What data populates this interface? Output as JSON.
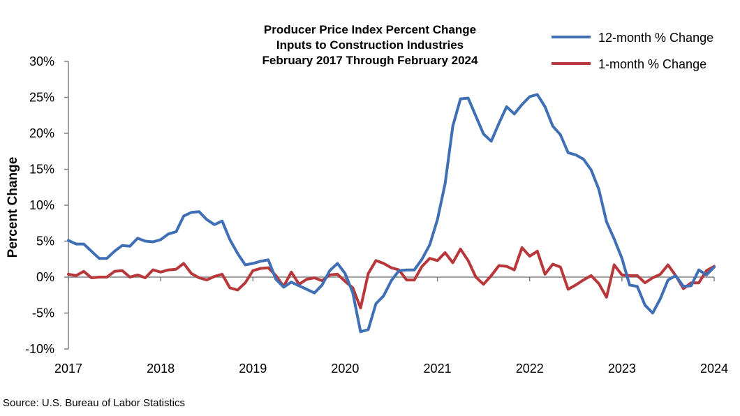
{
  "chart_data": {
    "type": "line",
    "title": [
      "Producer Price Index Percent Change",
      "Inputs to Construction Industries",
      "February 2017 Through February 2024"
    ],
    "xlabel": "",
    "ylabel": "Percent Change",
    "ylim": [
      -10,
      30
    ],
    "yticks": [
      "-10%",
      "-5%",
      "0%",
      "5%",
      "10%",
      "15%",
      "20%",
      "25%",
      "30%"
    ],
    "yticks_values": [
      -10,
      -5,
      0,
      5,
      10,
      15,
      20,
      25,
      30
    ],
    "xticks": [
      "2017",
      "2018",
      "2019",
      "2020",
      "2021",
      "2022",
      "2023",
      "2024"
    ],
    "grid": false,
    "legend_position": "top-right",
    "x": [
      "2017-02",
      "2017-03",
      "2017-04",
      "2017-05",
      "2017-06",
      "2017-07",
      "2017-08",
      "2017-09",
      "2017-10",
      "2017-11",
      "2017-12",
      "2018-01",
      "2018-02",
      "2018-03",
      "2018-04",
      "2018-05",
      "2018-06",
      "2018-07",
      "2018-08",
      "2018-09",
      "2018-10",
      "2018-11",
      "2018-12",
      "2019-01",
      "2019-02",
      "2019-03",
      "2019-04",
      "2019-05",
      "2019-06",
      "2019-07",
      "2019-08",
      "2019-09",
      "2019-10",
      "2019-11",
      "2019-12",
      "2020-01",
      "2020-02",
      "2020-03",
      "2020-04",
      "2020-05",
      "2020-06",
      "2020-07",
      "2020-08",
      "2020-09",
      "2020-10",
      "2020-11",
      "2020-12",
      "2021-01",
      "2021-02",
      "2021-03",
      "2021-04",
      "2021-05",
      "2021-06",
      "2021-07",
      "2021-08",
      "2021-09",
      "2021-10",
      "2021-11",
      "2021-12",
      "2022-01",
      "2022-02",
      "2022-03",
      "2022-04",
      "2022-05",
      "2022-06",
      "2022-07",
      "2022-08",
      "2022-09",
      "2022-10",
      "2022-11",
      "2022-12",
      "2023-01",
      "2023-02",
      "2023-03",
      "2023-04",
      "2023-05",
      "2023-06",
      "2023-07",
      "2023-08",
      "2023-09",
      "2023-10",
      "2023-11",
      "2023-12",
      "2024-01",
      "2024-02"
    ],
    "series": [
      {
        "name": "12-month % Change",
        "color": "#3F6FB5",
        "values": [
          5.1,
          4.6,
          4.6,
          3.6,
          2.6,
          2.6,
          3.6,
          4.4,
          4.3,
          5.4,
          5.0,
          4.9,
          5.2,
          6.0,
          6.3,
          8.5,
          9.0,
          9.1,
          8.0,
          7.3,
          7.8,
          5.2,
          3.3,
          1.7,
          1.9,
          2.2,
          2.4,
          -0.3,
          -1.4,
          -0.7,
          -1.2,
          -1.7,
          -2.2,
          -1.1,
          0.9,
          1.9,
          0.5,
          -2.2,
          -7.6,
          -7.3,
          -3.7,
          -2.6,
          -0.5,
          0.9,
          1.0,
          1.0,
          2.5,
          4.5,
          8.0,
          13.0,
          21.0,
          24.8,
          24.9,
          22.4,
          19.9,
          18.9,
          21.4,
          23.7,
          22.7,
          24.0,
          25.1,
          25.4,
          23.7,
          21.0,
          19.8,
          17.3,
          17.0,
          16.4,
          14.9,
          12.2,
          7.7,
          5.3,
          2.6,
          -1.1,
          -1.3,
          -3.9,
          -5.0,
          -3.0,
          -0.4,
          0.2,
          -1.3,
          -1.2,
          1.0,
          0.3,
          1.4
        ]
      },
      {
        "name": "1-month % Change",
        "color": "#B8373A",
        "values": [
          0.4,
          0.2,
          0.8,
          -0.1,
          0.0,
          0.0,
          0.8,
          0.9,
          0.0,
          0.3,
          -0.1,
          1.0,
          0.7,
          1.0,
          1.1,
          1.9,
          0.5,
          -0.1,
          -0.4,
          0.1,
          0.4,
          -1.5,
          -1.8,
          -0.8,
          0.9,
          1.2,
          1.3,
          0.2,
          -1.3,
          0.7,
          -1.0,
          -0.3,
          -0.1,
          -0.5,
          0.3,
          0.4,
          -0.6,
          -1.5,
          -4.3,
          0.5,
          2.3,
          1.9,
          1.3,
          1.0,
          -0.4,
          -0.4,
          1.5,
          2.6,
          2.3,
          3.4,
          2.0,
          3.9,
          2.3,
          0.0,
          -1.0,
          0.2,
          1.6,
          1.5,
          1.0,
          4.1,
          2.9,
          3.6,
          0.4,
          1.8,
          1.4,
          -1.7,
          -1.1,
          -0.4,
          0.2,
          -0.9,
          -2.8,
          1.7,
          0.3,
          0.2,
          0.2,
          -0.8,
          -0.1,
          0.4,
          1.7,
          0.2,
          -1.6,
          -0.8,
          -0.8,
          0.9,
          1.5
        ]
      }
    ]
  },
  "source": "Source: U.S. Bureau of Labor Statistics"
}
